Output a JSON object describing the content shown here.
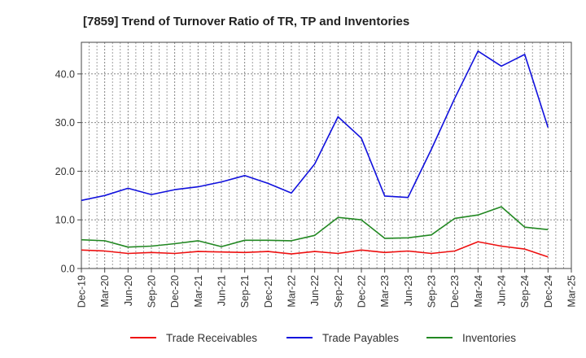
{
  "chart_data": {
    "type": "line",
    "title": "[7859]  Trend of Turnover Ratio of TR, TP and Inventories",
    "xlabel": "",
    "ylabel": "",
    "ylim": [
      0,
      46.5
    ],
    "yticks": [
      0,
      10,
      20,
      30,
      40
    ],
    "ytick_labels": [
      "0.0",
      "10.0",
      "20.0",
      "30.0",
      "40.0"
    ],
    "x_tick_labels": [
      "Dec-19",
      "Mar-20",
      "Jun-20",
      "Sep-20",
      "Dec-20",
      "Mar-21",
      "Jun-21",
      "Sep-21",
      "Dec-21",
      "Mar-22",
      "Jun-22",
      "Sep-22",
      "Dec-22",
      "Mar-23",
      "Jun-23",
      "Sep-23",
      "Dec-23",
      "Mar-24",
      "Jun-24",
      "Sep-24",
      "Dec-24",
      "Mar-25"
    ],
    "x": [
      "Dec-19",
      "Mar-20",
      "Jun-20",
      "Sep-20",
      "Dec-20",
      "Mar-21",
      "Jun-21",
      "Sep-21",
      "Dec-21",
      "Mar-22",
      "Jun-22",
      "Sep-22",
      "Dec-22",
      "Mar-23",
      "Jun-23",
      "Sep-23",
      "Dec-23",
      "Mar-24",
      "Jun-24",
      "Sep-24",
      "Dec-24"
    ],
    "grid": true,
    "legend_position": "bottom",
    "series": [
      {
        "name": "Trade Receivables",
        "color": "#ee1111",
        "values": [
          3.8,
          3.6,
          3.1,
          3.3,
          3.1,
          3.5,
          3.4,
          3.3,
          3.5,
          3.0,
          3.5,
          3.1,
          3.8,
          3.3,
          3.6,
          3.1,
          3.6,
          5.5,
          4.6,
          4.0,
          2.4
        ]
      },
      {
        "name": "Trade Payables",
        "color": "#1111dd",
        "values": [
          14.0,
          15.0,
          16.5,
          15.2,
          16.2,
          16.8,
          17.8,
          19.1,
          17.5,
          15.5,
          21.5,
          31.2,
          26.8,
          14.9,
          14.6,
          24.5,
          35.0,
          44.7,
          41.6,
          44.0,
          29.0
        ]
      },
      {
        "name": "Inventories",
        "color": "#228822",
        "values": [
          5.9,
          5.7,
          4.4,
          4.6,
          5.1,
          5.7,
          4.5,
          5.8,
          5.8,
          5.7,
          6.8,
          10.5,
          10.0,
          6.2,
          6.3,
          6.9,
          10.3,
          11.0,
          12.7,
          8.5,
          8.0
        ]
      }
    ]
  }
}
